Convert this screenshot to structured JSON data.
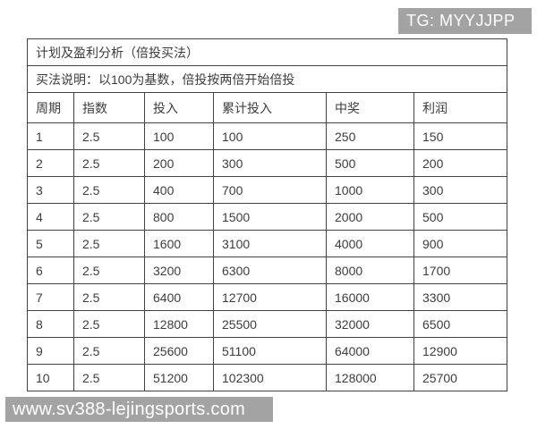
{
  "header_badge": {
    "text": "TG: MYYJJPP"
  },
  "footer_badge": {
    "text": "www.sv388-lejingsports.com"
  },
  "table": {
    "title": "计划及盈利分析（倍投买法）",
    "description": "买法说明：以100为基数，倍投按两倍开始倍投",
    "columns": [
      "周期",
      "指数",
      "投入",
      "累计投入",
      "中奖",
      "利润"
    ],
    "rows": [
      [
        "1",
        "2.5",
        "100",
        "100",
        "250",
        "150"
      ],
      [
        "2",
        "2.5",
        "200",
        "300",
        "500",
        "200"
      ],
      [
        "3",
        "2.5",
        "400",
        "700",
        "1000",
        "300"
      ],
      [
        "4",
        "2.5",
        "800",
        "1500",
        "2000",
        "500"
      ],
      [
        "5",
        "2.5",
        "1600",
        "3100",
        "4000",
        "900"
      ],
      [
        "6",
        "2.5",
        "3200",
        "6300",
        "8000",
        "1700"
      ],
      [
        "7",
        "2.5",
        "6400",
        "12700",
        "16000",
        "3300"
      ],
      [
        "8",
        "2.5",
        "12800",
        "25500",
        "32000",
        "6500"
      ],
      [
        "9",
        "2.5",
        "25600",
        "51100",
        "64000",
        "12900"
      ],
      [
        "10",
        "2.5",
        "51200",
        "102300",
        "128000",
        "25700"
      ]
    ]
  },
  "colors": {
    "badge_gray": "#a3a3a3",
    "table_border": "#424242",
    "text": "#3d3d3d",
    "background": "#ffffff"
  }
}
